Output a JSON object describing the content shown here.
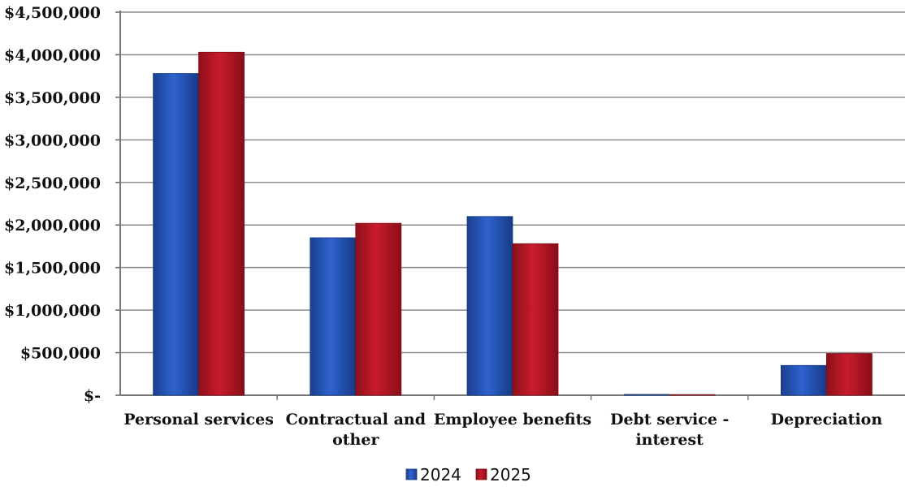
{
  "chart_data": {
    "type": "bar",
    "categories": [
      [
        "Personal services"
      ],
      [
        "Contractual and",
        "other"
      ],
      [
        "Employee benefits"
      ],
      [
        "Debt service -",
        "interest"
      ],
      [
        "Depreciation"
      ]
    ],
    "series": [
      {
        "name": "2024",
        "values": [
          3780000,
          1850000,
          2100000,
          10000,
          350000
        ]
      },
      {
        "name": "2025",
        "values": [
          4030000,
          2020000,
          1780000,
          5000,
          490000
        ]
      }
    ],
    "y_ticks": [
      0,
      500000,
      1000000,
      1500000,
      2000000,
      2500000,
      3000000,
      3500000,
      4000000,
      4500000
    ],
    "y_tick_labels": [
      "$-",
      "$500,000",
      "$1,000,000",
      "$1,500,000",
      "$2,000,000",
      "$2,500,000",
      "$3,000,000",
      "$3,500,000",
      "$4,000,000",
      "$4,500,000"
    ],
    "ylim": [
      0,
      4500000
    ],
    "grid": true,
    "legend_position": "bottom",
    "colors": {
      "2024": "#1f4fb0",
      "2025": "#b01222"
    }
  }
}
